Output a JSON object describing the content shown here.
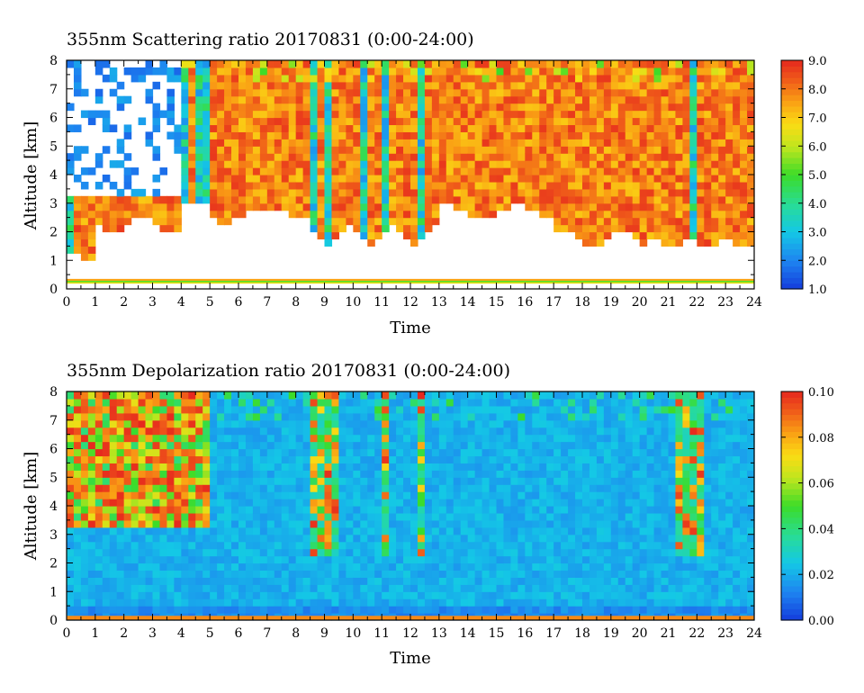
{
  "chart_data": [
    {
      "type": "heatmap",
      "title": "355nm Scattering ratio  20170831 (0:00-24:00)",
      "xlabel": "Time",
      "ylabel": "Altitude [km]",
      "xlim": [
        0,
        24
      ],
      "ylim": [
        0,
        8
      ],
      "x_ticks": [
        "0",
        "1",
        "2",
        "3",
        "4",
        "5",
        "6",
        "7",
        "8",
        "9",
        "10",
        "11",
        "12",
        "13",
        "14",
        "15",
        "16",
        "17",
        "18",
        "19",
        "20",
        "21",
        "22",
        "23",
        "24"
      ],
      "y_ticks": [
        "0",
        "1",
        "2",
        "3",
        "4",
        "5",
        "6",
        "7",
        "8"
      ],
      "colorbar": {
        "min": 1.0,
        "max": 9.0,
        "ticks": [
          "1.0",
          "2.0",
          "3.0",
          "4.0",
          "5.0",
          "6.0",
          "7.0",
          "8.0",
          "9.0"
        ]
      },
      "features": {
        "background_value": 8.0,
        "surface_layer_km": [
          0.2,
          0.35
        ],
        "blank_below_base_km": true,
        "cloud_gaps_hours": [
          [
            0.0,
            0.3
          ],
          [
            4.1,
            4.3
          ],
          [
            4.5,
            4.9
          ],
          [
            8.6,
            8.8
          ],
          [
            9.1,
            9.3
          ],
          [
            9.5,
            9.6
          ],
          [
            10.2,
            10.5
          ],
          [
            11.0,
            11.2
          ],
          [
            12.2,
            12.4
          ],
          [
            21.4,
            21.6
          ],
          [
            21.8,
            22.1
          ]
        ]
      }
    },
    {
      "type": "heatmap",
      "title": "355nm Depolarization ratio  20170831 (0:00-24:00)",
      "xlabel": "Time",
      "ylabel": "Altitude [km]",
      "xlim": [
        0,
        24
      ],
      "ylim": [
        0,
        8
      ],
      "x_ticks": [
        "0",
        "1",
        "2",
        "3",
        "4",
        "5",
        "6",
        "7",
        "8",
        "9",
        "10",
        "11",
        "12",
        "13",
        "14",
        "15",
        "16",
        "17",
        "18",
        "19",
        "20",
        "21",
        "22",
        "23",
        "24"
      ],
      "y_ticks": [
        "0",
        "1",
        "2",
        "3",
        "4",
        "5",
        "6",
        "7",
        "8"
      ],
      "colorbar": {
        "min": 0.0,
        "max": 0.1,
        "ticks": [
          "0.00",
          "0.02",
          "0.04",
          "0.06",
          "0.08",
          "0.10"
        ]
      },
      "features": {
        "background_value": 0.02,
        "high_depol_region_hours": [
          0,
          5
        ],
        "high_depol_region_km": [
          3.2,
          8
        ],
        "surface_band_km": [
          0.0,
          0.15
        ]
      }
    }
  ]
}
